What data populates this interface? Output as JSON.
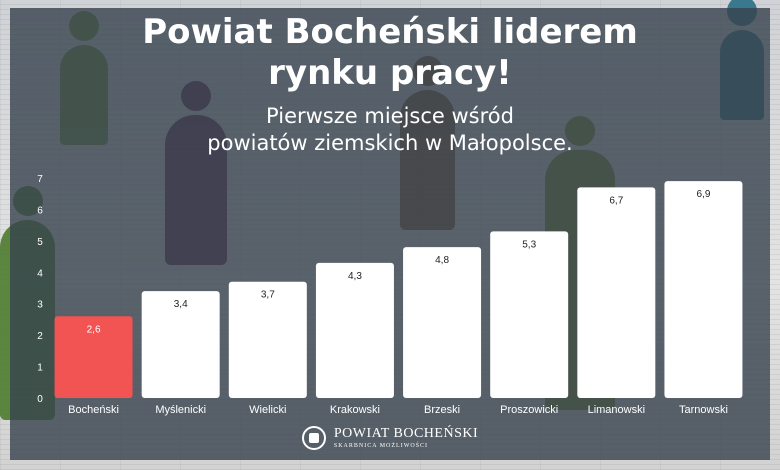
{
  "title_lines": [
    "Powiat Bocheński liderem",
    "rynku pracy!"
  ],
  "subtitle_lines": [
    "Pierwsze miejsce wśród",
    "powiatów ziemskich w Małopolsce."
  ],
  "colors": {
    "highlight_bar": "#f25353",
    "bar": "#ffffff",
    "overlay": "#37424e",
    "text": "#ffffff"
  },
  "chart_data": {
    "type": "bar",
    "categories": [
      "Bocheński",
      "Myślenicki",
      "Wielicki",
      "Krakowski",
      "Brzeski",
      "Proszowicki",
      "Limanowski",
      "Tarnowski"
    ],
    "values": [
      2.6,
      3.4,
      3.7,
      4.3,
      4.8,
      5.3,
      6.7,
      6.9
    ],
    "value_labels": [
      "2,6",
      "3,4",
      "3,7",
      "4,3",
      "4,8",
      "5,3",
      "6,7",
      "6,9"
    ],
    "highlight_index": 0,
    "ylim": [
      0,
      7
    ],
    "yticks": [
      "0",
      "1",
      "2",
      "3",
      "4",
      "5",
      "6",
      "7"
    ],
    "grid": false,
    "legend": "none"
  },
  "footer": {
    "logo_name": "POWIAT BOCHEŃSKI",
    "logo_tagline": "SKARBNICA MOŻLIWOŚCI"
  }
}
